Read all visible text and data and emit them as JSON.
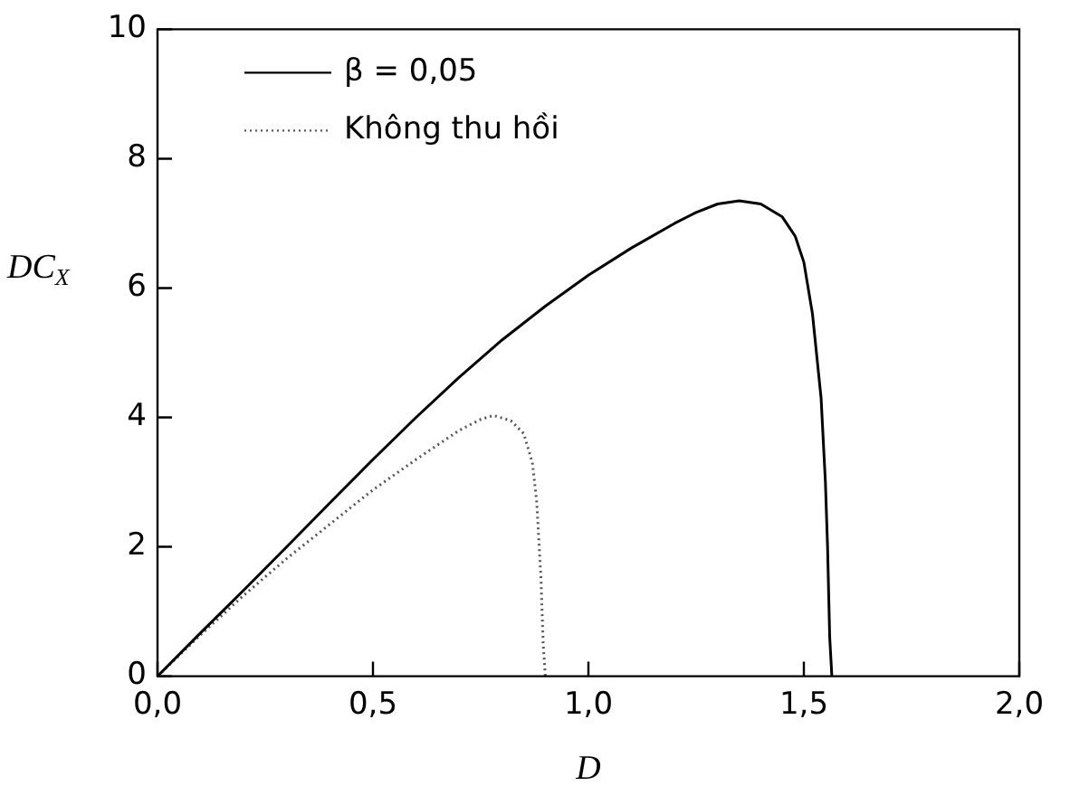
{
  "chart_data": {
    "type": "line",
    "xlabel": "D",
    "ylabel": "DC$_{X}$",
    "xlim": [
      0,
      2
    ],
    "ylim": [
      0,
      10
    ],
    "xticks": [
      {
        "value": 0,
        "label": "0,0"
      },
      {
        "value": 0.5,
        "label": "0,5"
      },
      {
        "value": 1,
        "label": "1,0"
      },
      {
        "value": 1.5,
        "label": "1,5"
      },
      {
        "value": 2,
        "label": "2,0"
      }
    ],
    "yticks": [
      0,
      2,
      4,
      6,
      8,
      10
    ],
    "grid": false,
    "legend": "top left",
    "marker": "none",
    "series": [
      {
        "name": "β = 0,05",
        "color": "#000000",
        "line_style": "solid",
        "x": [
          0,
          0.1,
          0.2,
          0.3,
          0.4,
          0.5,
          0.6,
          0.7,
          0.8,
          0.9,
          1.0,
          1.1,
          1.2,
          1.25,
          1.3,
          1.35,
          1.4,
          1.45,
          1.48,
          1.5,
          1.52,
          1.54,
          1.55,
          1.555,
          1.56,
          1.565
        ],
        "values": [
          0,
          0.67,
          1.33,
          2.0,
          2.68,
          3.35,
          4.0,
          4.62,
          5.2,
          5.72,
          6.2,
          6.62,
          7.0,
          7.17,
          7.3,
          7.35,
          7.3,
          7.1,
          6.8,
          6.4,
          5.6,
          4.3,
          3.0,
          2.0,
          0.6,
          0
        ]
      },
      {
        "name": "Không thu hồi",
        "color": "#555555",
        "line_style": "dotted",
        "x": [
          0,
          0.1,
          0.2,
          0.3,
          0.4,
          0.5,
          0.6,
          0.7,
          0.75,
          0.78,
          0.82,
          0.85,
          0.87,
          0.88,
          0.89,
          0.895,
          0.9
        ],
        "values": [
          0,
          0.64,
          1.25,
          1.82,
          2.35,
          2.88,
          3.35,
          3.8,
          3.97,
          4.03,
          3.95,
          3.75,
          3.3,
          2.7,
          1.5,
          0.5,
          0
        ]
      }
    ]
  }
}
